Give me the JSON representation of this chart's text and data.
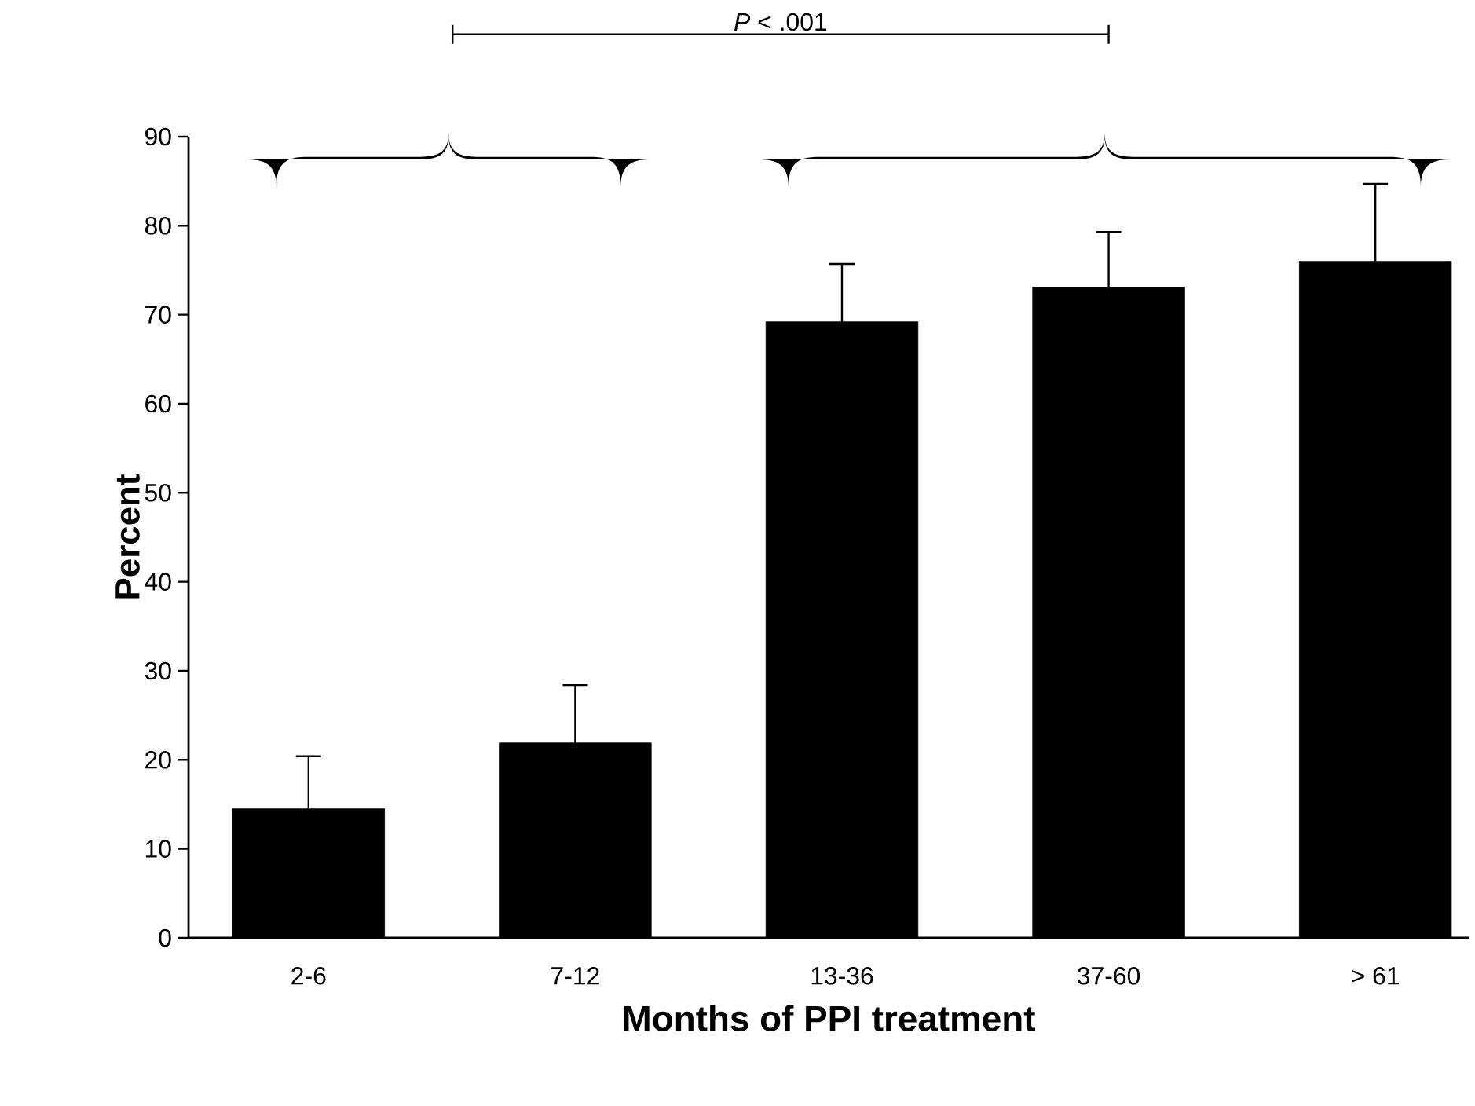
{
  "chart_data": {
    "type": "bar",
    "xlabel": "Months of PPI treatment",
    "ylabel": "Percent",
    "categories": [
      "2-6",
      "7-12",
      "13-36",
      "37-60",
      "> 61"
    ],
    "values": [
      14.5,
      21.9,
      69.2,
      73.1,
      76.0
    ],
    "errors": [
      5.9,
      6.5,
      6.5,
      6.2,
      8.7
    ],
    "color": "#000000",
    "ylim": [
      0,
      90
    ],
    "yticks": [
      0,
      10,
      20,
      30,
      40,
      50,
      60,
      70,
      80,
      90
    ],
    "grid": false,
    "annotations": [
      "*P* < .001"
    ]
  }
}
